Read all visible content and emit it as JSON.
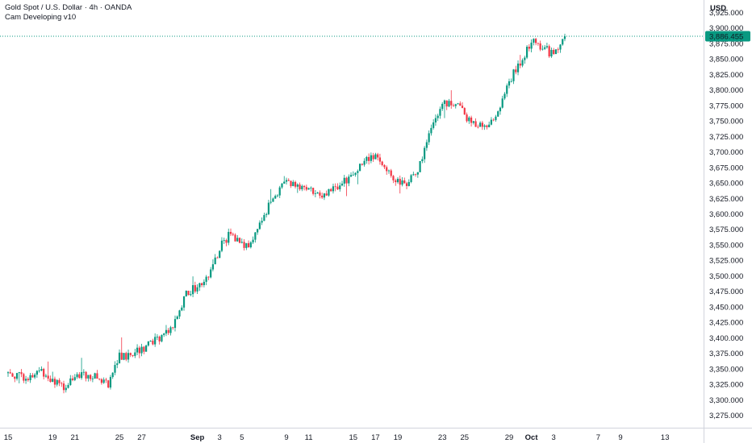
{
  "header": {
    "title": "Gold Spot / U.S. Dollar · 4h · OANDA",
    "indicator": "Cam Developing v10"
  },
  "currency_label": "USD",
  "price_label": "3,886.455",
  "colors": {
    "up": "#089981",
    "down": "#f23645",
    "price_line": "#089981",
    "axis_line": "#d1d4dc",
    "text": "#131722"
  },
  "chart_data": {
    "type": "candlestick",
    "title": "Gold Spot / U.S. Dollar · 4h · OANDA",
    "ylim": [
      3255,
      3945
    ],
    "y_ticks": [
      "3,275.000",
      "3,300.000",
      "3,325.000",
      "3,350.000",
      "3,375.000",
      "3,400.000",
      "3,425.000",
      "3,450.000",
      "3,475.000",
      "3,500.000",
      "3,525.000",
      "3,550.000",
      "3,575.000",
      "3,600.000",
      "3,625.000",
      "3,650.000",
      "3,675.000",
      "3,700.000",
      "3,725.000",
      "3,750.000",
      "3,775.000",
      "3,800.000",
      "3,825.000",
      "3,850.000",
      "3,875.000",
      "3,900.000",
      "3,925.000"
    ],
    "y_tick_values": [
      3275,
      3300,
      3325,
      3350,
      3375,
      3400,
      3425,
      3450,
      3475,
      3500,
      3525,
      3550,
      3575,
      3600,
      3625,
      3650,
      3675,
      3700,
      3725,
      3750,
      3775,
      3800,
      3825,
      3850,
      3875,
      3900,
      3925
    ],
    "x_ticks": [
      {
        "label": "15",
        "day": 0,
        "bold": false
      },
      {
        "label": "19",
        "day": 4,
        "bold": false
      },
      {
        "label": "21",
        "day": 6,
        "bold": false
      },
      {
        "label": "25",
        "day": 10,
        "bold": false
      },
      {
        "label": "27",
        "day": 12,
        "bold": false
      },
      {
        "label": "Sep",
        "day": 17,
        "bold": true
      },
      {
        "label": "3",
        "day": 19,
        "bold": false
      },
      {
        "label": "5",
        "day": 21,
        "bold": false
      },
      {
        "label": "9",
        "day": 25,
        "bold": false
      },
      {
        "label": "11",
        "day": 27,
        "bold": false
      },
      {
        "label": "15",
        "day": 31,
        "bold": false
      },
      {
        "label": "17",
        "day": 33,
        "bold": false
      },
      {
        "label": "19",
        "day": 35,
        "bold": false
      },
      {
        "label": "23",
        "day": 39,
        "bold": false
      },
      {
        "label": "25",
        "day": 41,
        "bold": false
      },
      {
        "label": "29",
        "day": 45,
        "bold": false
      },
      {
        "label": "Oct",
        "day": 47,
        "bold": true
      },
      {
        "label": "3",
        "day": 49,
        "bold": false
      },
      {
        "label": "7",
        "day": 53,
        "bold": false
      },
      {
        "label": "9",
        "day": 55,
        "bold": false
      },
      {
        "label": "13",
        "day": 59,
        "bold": false
      }
    ],
    "last_price": 3886.455,
    "anchors": [
      [
        0,
        3343
      ],
      [
        2,
        3335
      ],
      [
        3,
        3348
      ],
      [
        4,
        3330
      ],
      [
        5,
        3318
      ],
      [
        6,
        3342
      ],
      [
        7,
        3340
      ],
      [
        8,
        3335
      ],
      [
        9,
        3326
      ],
      [
        10,
        3370
      ],
      [
        11,
        3372
      ],
      [
        12,
        3382
      ],
      [
        13,
        3392
      ],
      [
        14,
        3405
      ],
      [
        15,
        3425
      ],
      [
        16,
        3475
      ],
      [
        17,
        3480
      ],
      [
        18,
        3500
      ],
      [
        19,
        3545
      ],
      [
        20,
        3570
      ],
      [
        21,
        3550
      ],
      [
        22,
        3555
      ],
      [
        23,
        3600
      ],
      [
        24,
        3630
      ],
      [
        25,
        3655
      ],
      [
        26,
        3645
      ],
      [
        27,
        3640
      ],
      [
        28,
        3625
      ],
      [
        29,
        3640
      ],
      [
        30,
        3650
      ],
      [
        31,
        3660
      ],
      [
        32,
        3690
      ],
      [
        33,
        3693
      ],
      [
        34,
        3670
      ],
      [
        35,
        3650
      ],
      [
        36,
        3650
      ],
      [
        37,
        3680
      ],
      [
        38,
        3740
      ],
      [
        39,
        3775
      ],
      [
        40,
        3780
      ],
      [
        41,
        3760
      ],
      [
        42,
        3740
      ],
      [
        43,
        3745
      ],
      [
        44,
        3760
      ],
      [
        45,
        3815
      ],
      [
        46,
        3845
      ],
      [
        47,
        3880
      ],
      [
        48,
        3870
      ],
      [
        49,
        3855
      ],
      [
        50,
        3888
      ]
    ],
    "grid": false,
    "legend": "none"
  }
}
